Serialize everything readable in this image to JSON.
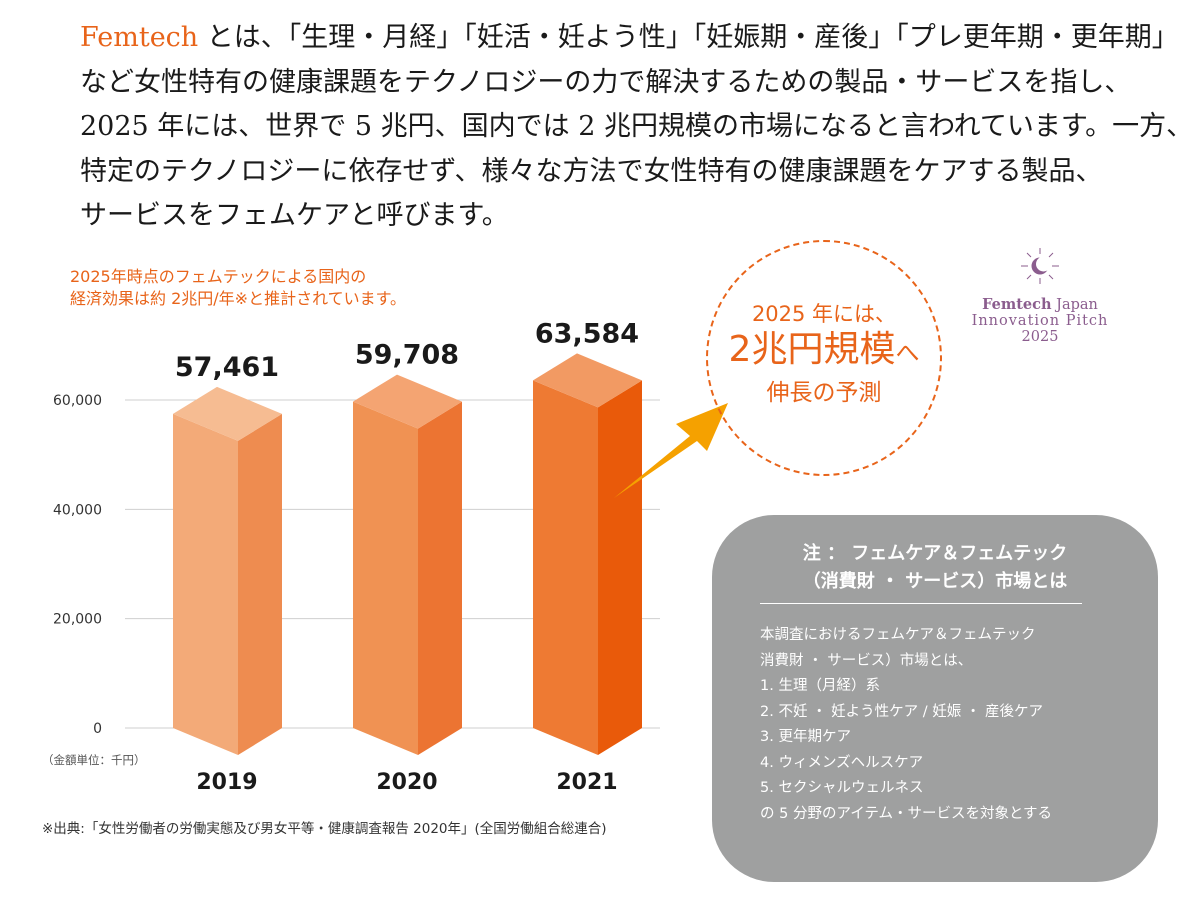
{
  "intro": {
    "brand_word": "Femtech",
    "line1_rest": " とは、「生理・月経」「妊活・妊よう性」「妊娠期・産後」「プレ更年期・更年期」",
    "line2": "など女性特有の健康課題をテクノロジーの力で解決するための製品・サービスを指し、",
    "line3": "2025 年には、世界で 5 兆円、国内では 2 兆円規模の市場になると言われています。一方、",
    "line4": "特定のテクノロジーに依存せず、様々な方法で女性特有の健康課題をケアする製品、",
    "line5": "サービスをフェムケアと呼びます。"
  },
  "chart_note": {
    "line1": "2025年時点のフェムテックによる国内の",
    "line2": "経済効果は約 2兆円/年※と推計されています。"
  },
  "unit_label": "（金額単位：千円）",
  "source": "※出典:「女性労働者の労働実態及び男女平等・健康調査報告 2020年」(全国労働組合総連合)",
  "bubble": {
    "line1": "2025 年には、",
    "line2_main": "2兆円規模",
    "line2_suffix": "へ",
    "line3": "伸長の予測"
  },
  "logo": {
    "line1_en": "Femtech",
    "line1_jp": " Japan",
    "line2": "Innovation Pitch",
    "line3": "2025",
    "icon": "moon-sun-icon"
  },
  "note_box": {
    "title_line1": "注 ： フェムケア＆フェムテック",
    "title_line2": "（消費財 ・ サービス）市場とは",
    "body": [
      "本調査におけるフェムケア＆フェムテック",
      "消費財 ・ サービス）市場とは、",
      "1. 生理（月経）系",
      "2. 不妊 ・ 妊よう性ケア / 妊娠 ・ 産後ケア",
      "3. 更年期ケア",
      "4. ウィメンズヘルスケア",
      "5. セクシャルウェルネス",
      "の 5 分野のアイテム・サービスを対象とする"
    ]
  },
  "colors": {
    "accent": "#e8641a",
    "bar_2019": "#f0a16d",
    "bar_2020": "#ee8b4f",
    "bar_2021": "#eb6a21",
    "note_bg": "#9fa0a0",
    "logo": "#8b5d8e"
  },
  "chart_data": {
    "type": "bar",
    "categories": [
      "2019",
      "2020",
      "2021"
    ],
    "values": [
      57461,
      59708,
      63584
    ],
    "data_labels": [
      "57,461",
      "59,708",
      "63,584"
    ],
    "y_ticks": [
      0,
      20000,
      40000,
      60000
    ],
    "y_tick_labels": [
      "0",
      "20,000",
      "40,000",
      "60,000"
    ],
    "ylim": [
      0,
      60000
    ],
    "grid": true,
    "style": "3d-column"
  }
}
